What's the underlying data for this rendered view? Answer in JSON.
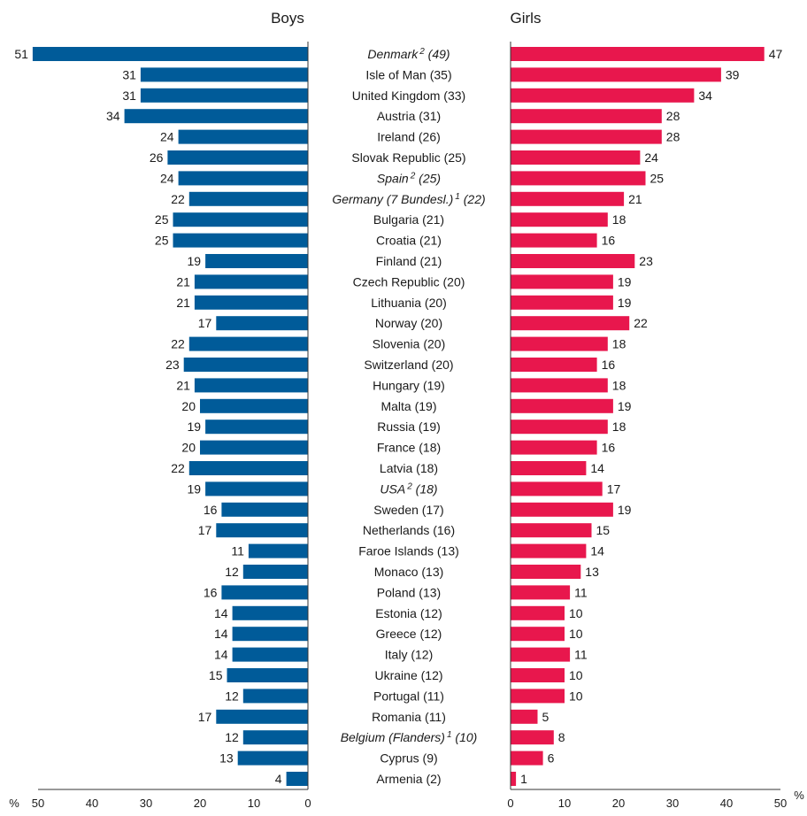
{
  "chart_data": {
    "type": "bar",
    "orientation": "horizontal",
    "layout": "back-to-back",
    "colors": {
      "boys": "#005b99",
      "girls": "#e8174d"
    },
    "categories": [
      {
        "label": "Denmark",
        "sup": "2",
        "suffix": " (49)",
        "italic": true
      },
      {
        "label": "Isle of Man (35)"
      },
      {
        "label": "United Kingdom (33)"
      },
      {
        "label": "Austria (31)"
      },
      {
        "label": "Ireland (26)"
      },
      {
        "label": "Slovak Republic (25)"
      },
      {
        "label": "Spain",
        "sup": "2",
        "suffix": " (25)",
        "italic": true
      },
      {
        "label": "Germany (7 Bundesl.)",
        "sup": "1",
        "suffix": " (22)",
        "italic": true
      },
      {
        "label": "Bulgaria (21)"
      },
      {
        "label": "Croatia (21)"
      },
      {
        "label": "Finland (21)"
      },
      {
        "label": "Czech Republic (20)"
      },
      {
        "label": "Lithuania (20)"
      },
      {
        "label": "Norway (20)"
      },
      {
        "label": "Slovenia (20)"
      },
      {
        "label": "Switzerland (20)"
      },
      {
        "label": "Hungary (19)"
      },
      {
        "label": "Malta (19)"
      },
      {
        "label": "Russia (19)"
      },
      {
        "label": "France (18)"
      },
      {
        "label": "Latvia (18)"
      },
      {
        "label": "USA",
        "sup": "2",
        "suffix": " (18)",
        "italic": true
      },
      {
        "label": "Sweden (17)"
      },
      {
        "label": "Netherlands (16)"
      },
      {
        "label": "Faroe Islands (13)"
      },
      {
        "label": "Monaco (13)"
      },
      {
        "label": "Poland (13)"
      },
      {
        "label": "Estonia (12)"
      },
      {
        "label": "Greece (12)"
      },
      {
        "label": "Italy (12)"
      },
      {
        "label": "Ukraine (12)"
      },
      {
        "label": "Portugal (11)"
      },
      {
        "label": "Romania (11)"
      },
      {
        "label": "Belgium (Flanders)",
        "sup": "1",
        "suffix": " (10)",
        "italic": true
      },
      {
        "label": "Cyprus (9)"
      },
      {
        "label": "Armenia (2)"
      }
    ],
    "series": [
      {
        "name": "Boys",
        "values": [
          51,
          31,
          31,
          34,
          24,
          26,
          24,
          22,
          25,
          25,
          19,
          21,
          21,
          17,
          22,
          23,
          21,
          20,
          19,
          20,
          22,
          19,
          16,
          17,
          11,
          12,
          16,
          14,
          14,
          14,
          15,
          12,
          17,
          12,
          13,
          4
        ]
      },
      {
        "name": "Girls",
        "values": [
          47,
          39,
          34,
          28,
          28,
          24,
          25,
          21,
          18,
          16,
          23,
          19,
          19,
          22,
          18,
          16,
          18,
          19,
          18,
          16,
          14,
          17,
          19,
          15,
          14,
          13,
          11,
          10,
          10,
          11,
          10,
          10,
          5,
          8,
          6,
          1
        ]
      }
    ],
    "xlim": [
      0,
      50
    ],
    "ticks": [
      0,
      10,
      20,
      30,
      40,
      50
    ],
    "unit_label": "%"
  }
}
